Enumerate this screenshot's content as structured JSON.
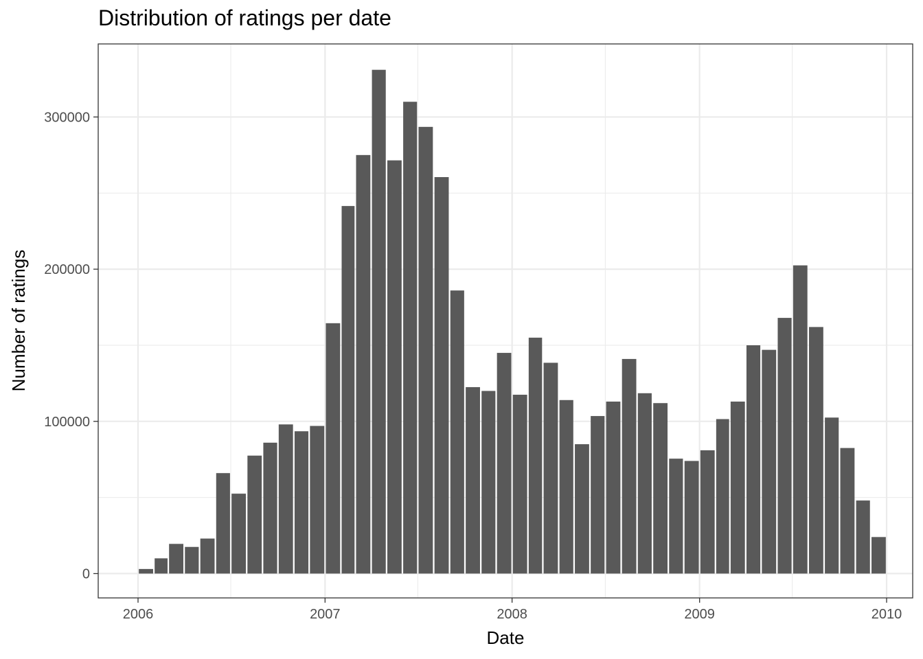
{
  "chart_data": {
    "type": "bar",
    "title": "Distribution of ratings per date",
    "xlabel": "Date",
    "ylabel": "Number of ratings",
    "bin": "month",
    "x": [
      "2006-01",
      "2006-02",
      "2006-03",
      "2006-04",
      "2006-05",
      "2006-06",
      "2006-07",
      "2006-08",
      "2006-09",
      "2006-10",
      "2006-11",
      "2006-12",
      "2007-01",
      "2007-02",
      "2007-03",
      "2007-04",
      "2007-05",
      "2007-06",
      "2007-07",
      "2007-08",
      "2007-09",
      "2007-10",
      "2007-11",
      "2007-12",
      "2008-01",
      "2008-02",
      "2008-03",
      "2008-04",
      "2008-05",
      "2008-06",
      "2008-07",
      "2008-08",
      "2008-09",
      "2008-10",
      "2008-11",
      "2008-12",
      "2009-01",
      "2009-02",
      "2009-03",
      "2009-04",
      "2009-05",
      "2009-06",
      "2009-07",
      "2009-08",
      "2009-09",
      "2009-10",
      "2009-11",
      "2009-12"
    ],
    "values": [
      3000,
      10000,
      19500,
      17500,
      23000,
      66000,
      52500,
      77500,
      86000,
      98000,
      93500,
      97000,
      164500,
      241500,
      275000,
      331000,
      271500,
      310000,
      293500,
      260500,
      186000,
      122500,
      120000,
      145000,
      117500,
      155000,
      138500,
      114000,
      85000,
      103500,
      113000,
      141000,
      118500,
      112000,
      75500,
      74000,
      81000,
      101500,
      113000,
      150000,
      147000,
      168000,
      202500,
      162000,
      102500,
      82500,
      48000,
      24000
    ],
    "xlim": [
      "2006-01-01",
      "2010-01-01"
    ],
    "xticks": [
      "2006",
      "2007",
      "2008",
      "2009",
      "2010"
    ],
    "ylim": [
      -16000,
      348000
    ],
    "yticks": [
      0,
      100000,
      200000,
      300000
    ],
    "ytick_labels": [
      "0",
      "100000",
      "200000",
      "300000"
    ],
    "bar_color": "#595959",
    "grid_color": "#ebebeb",
    "grid": true,
    "legend": "none"
  }
}
